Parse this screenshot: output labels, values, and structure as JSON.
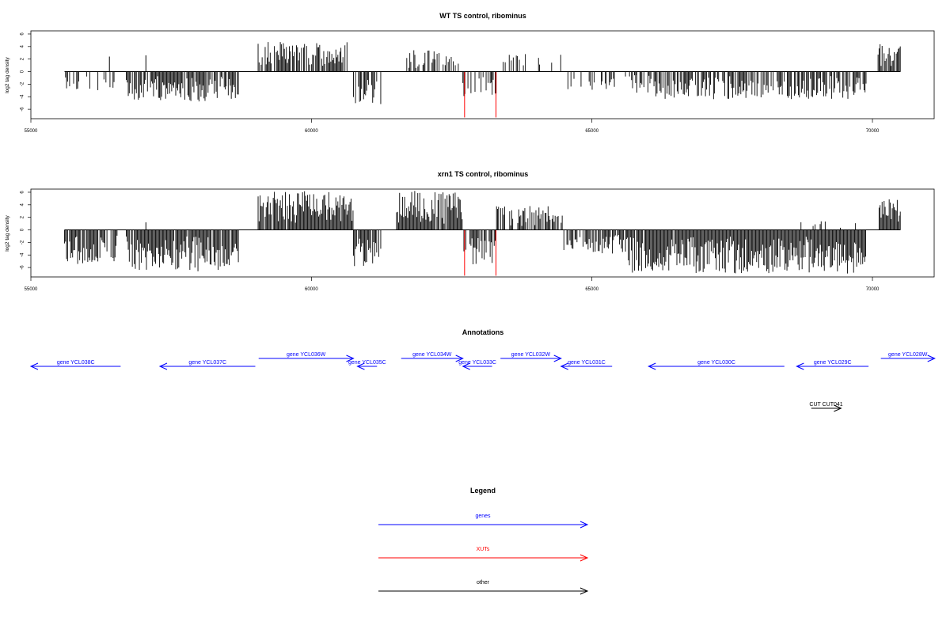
{
  "chart_data": [
    {
      "type": "bar",
      "title": "WT TS control, ribominus",
      "ylabel": "log2 tag density",
      "xlim": [
        55000,
        71100
      ],
      "ylim": [
        -7.5,
        6.5
      ],
      "xticks": [
        "55000",
        "60000",
        "65000",
        "70000"
      ],
      "yticks": [
        "-6",
        "-4",
        "-2",
        "0",
        "2",
        "4",
        "6"
      ],
      "baseline": [
        55600,
        70500
      ],
      "segments": [
        {
          "from": 55600,
          "to": 56500,
          "sign": -1,
          "max": 3.2,
          "density": 0.35,
          "seed": 11
        },
        {
          "from": 56700,
          "to": 58700,
          "sign": -1,
          "max": 4.8,
          "density": 0.85,
          "seed": 12
        },
        {
          "from": 59050,
          "to": 60650,
          "sign": 1,
          "max": 4.8,
          "density": 0.75,
          "seed": 13
        },
        {
          "from": 60750,
          "to": 61250,
          "sign": -1,
          "max": 5.2,
          "density": 0.7,
          "seed": 14
        },
        {
          "from": 61700,
          "to": 62700,
          "sign": 1,
          "max": 3.5,
          "density": 0.55,
          "seed": 15
        },
        {
          "from": 62700,
          "to": 63300,
          "sign": -1,
          "max": 4.0,
          "density": 0.5,
          "seed": 16
        },
        {
          "from": 63400,
          "to": 64500,
          "sign": 1,
          "max": 2.8,
          "density": 0.2,
          "seed": 17
        },
        {
          "from": 64500,
          "to": 65800,
          "sign": -1,
          "max": 3.0,
          "density": 0.35,
          "seed": 18
        },
        {
          "from": 65800,
          "to": 69900,
          "sign": -1,
          "max": 4.4,
          "density": 0.65,
          "seed": 19
        },
        {
          "from": 70100,
          "to": 70500,
          "sign": 1,
          "max": 4.5,
          "density": 0.8,
          "seed": 20
        }
      ],
      "spikes": [
        {
          "x": 56400,
          "y": 2.4
        },
        {
          "x": 57050,
          "y": 2.6
        },
        {
          "x": 62730,
          "y": -7.3,
          "color": "#ff0000"
        },
        {
          "x": 63290,
          "y": -7.3,
          "color": "#ff0000"
        }
      ]
    },
    {
      "type": "bar",
      "title": "xrn1 TS control, ribominus",
      "ylabel": "log2 tag density",
      "xlim": [
        55000,
        71100
      ],
      "ylim": [
        -7.5,
        6.5
      ],
      "xticks": [
        "55000",
        "60000",
        "65000",
        "70000"
      ],
      "yticks": [
        "-6",
        "-4",
        "-2",
        "0",
        "2",
        "4",
        "6"
      ],
      "baseline": [
        55600,
        70500
      ],
      "segments": [
        {
          "from": 55600,
          "to": 56550,
          "sign": -1,
          "max": 5.5,
          "density": 0.85,
          "seed": 31
        },
        {
          "from": 56700,
          "to": 58700,
          "sign": -1,
          "max": 6.6,
          "density": 0.95,
          "seed": 32
        },
        {
          "from": 59050,
          "to": 60750,
          "sign": 1,
          "max": 6.2,
          "density": 0.95,
          "seed": 33
        },
        {
          "from": 60750,
          "to": 61250,
          "sign": -1,
          "max": 5.8,
          "density": 0.85,
          "seed": 34
        },
        {
          "from": 61500,
          "to": 62700,
          "sign": 1,
          "max": 6.3,
          "density": 0.95,
          "seed": 35
        },
        {
          "from": 62700,
          "to": 63300,
          "sign": -1,
          "max": 5.5,
          "density": 0.8,
          "seed": 36
        },
        {
          "from": 63300,
          "to": 64500,
          "sign": 1,
          "max": 3.8,
          "density": 0.7,
          "seed": 37
        },
        {
          "from": 64500,
          "to": 65650,
          "sign": -1,
          "max": 3.8,
          "density": 0.75,
          "seed": 38
        },
        {
          "from": 65650,
          "to": 69900,
          "sign": -1,
          "max": 7.0,
          "density": 0.98,
          "seed": 39
        },
        {
          "from": 68600,
          "to": 69800,
          "sign": 1,
          "max": 1.4,
          "density": 0.12,
          "seed": 40
        },
        {
          "from": 70100,
          "to": 70500,
          "sign": 1,
          "max": 5.2,
          "density": 0.9,
          "seed": 41
        }
      ],
      "spikes": [
        {
          "x": 57050,
          "y": 1.2
        },
        {
          "x": 62730,
          "y": -7.3,
          "color": "#ff0000"
        },
        {
          "x": 63290,
          "y": -7.3,
          "color": "#ff0000"
        }
      ]
    }
  ],
  "annotations": {
    "title": "Annotations",
    "features": [
      {
        "label": "gene YCL038C",
        "start": 55000,
        "end": 56600,
        "strand": "-",
        "row": 1,
        "color": "#0000ff"
      },
      {
        "label": "gene YCL037C",
        "start": 57300,
        "end": 59000,
        "strand": "-",
        "row": 1,
        "color": "#0000ff"
      },
      {
        "label": "gene YCL036W",
        "start": 59060,
        "end": 60750,
        "strand": "+",
        "row": 0,
        "color": "#0000ff"
      },
      {
        "label": "gene YCL035C",
        "start": 60820,
        "end": 61170,
        "strand": "-",
        "row": 1,
        "color": "#0000ff"
      },
      {
        "label": "gene YCL034W",
        "start": 61600,
        "end": 62700,
        "strand": "+",
        "row": 0,
        "color": "#0000ff"
      },
      {
        "label": "gene YCL033C",
        "start": 62700,
        "end": 63220,
        "strand": "-",
        "row": 1,
        "color": "#0000ff"
      },
      {
        "label": "gene YCL032W",
        "start": 63370,
        "end": 64450,
        "strand": "+",
        "row": 0,
        "color": "#0000ff"
      },
      {
        "label": "gene YCL031C",
        "start": 64450,
        "end": 65360,
        "strand": "-",
        "row": 1,
        "color": "#0000ff"
      },
      {
        "label": "gene YCL030C",
        "start": 66010,
        "end": 68430,
        "strand": "-",
        "row": 1,
        "color": "#0000ff"
      },
      {
        "label": "gene YCL029C",
        "start": 68650,
        "end": 69930,
        "strand": "-",
        "row": 1,
        "color": "#0000ff"
      },
      {
        "label": "gene YCL028W",
        "start": 70150,
        "end": 71110,
        "strand": "+",
        "row": 0,
        "color": "#0000ff"
      },
      {
        "label": "CUT CUT041",
        "start": 68910,
        "end": 69440,
        "strand": "+",
        "row": 2,
        "color": "#000000"
      }
    ]
  },
  "legend": {
    "title": "Legend",
    "items": [
      {
        "label": "genes",
        "color": "#0000ff"
      },
      {
        "label": "XUTs",
        "color": "#ff0000"
      },
      {
        "label": "other",
        "color": "#000000"
      }
    ]
  }
}
